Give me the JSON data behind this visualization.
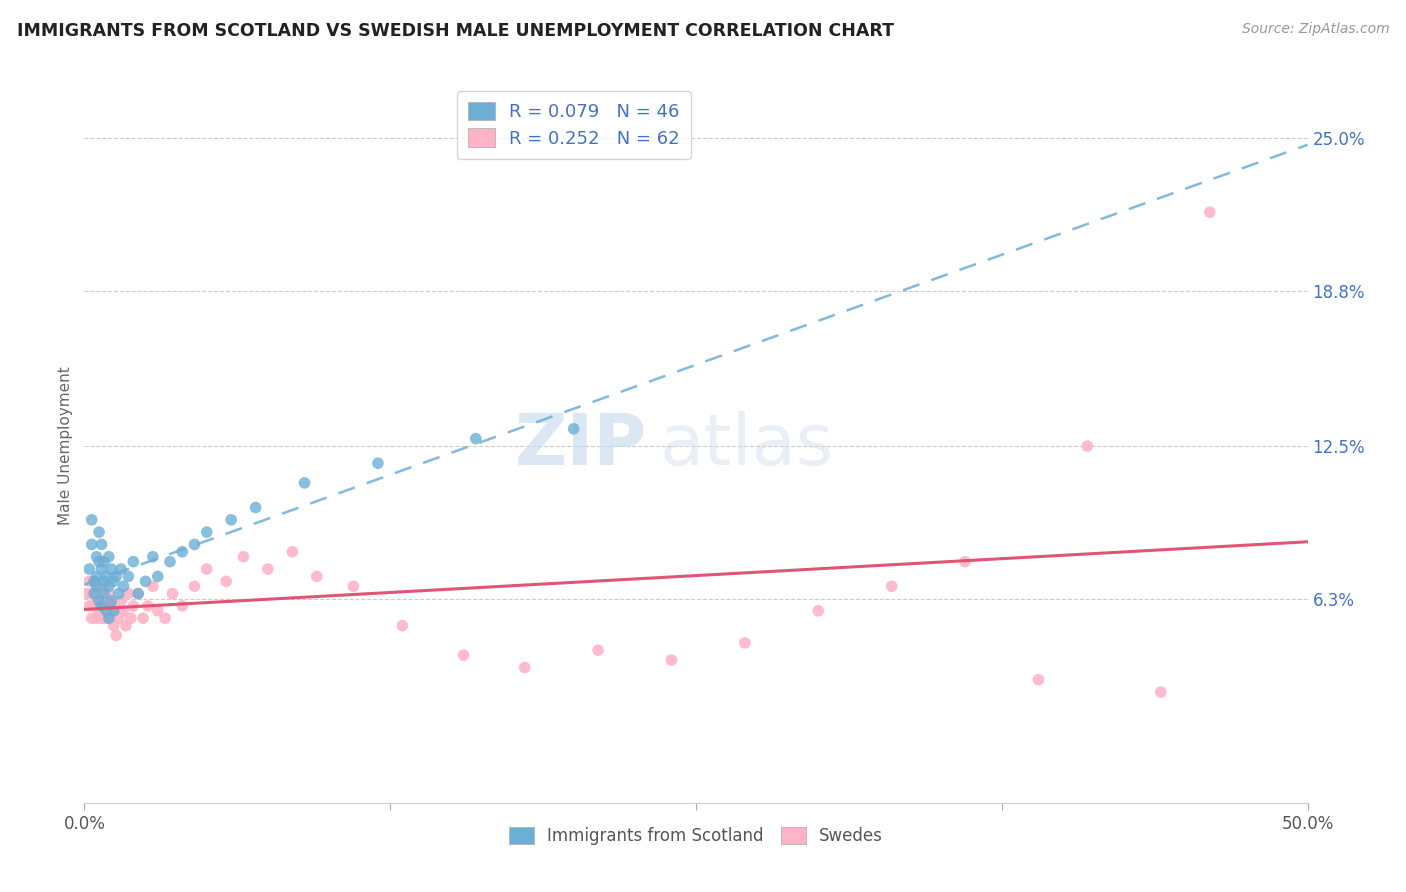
{
  "title": "IMMIGRANTS FROM SCOTLAND VS SWEDISH MALE UNEMPLOYMENT CORRELATION CHART",
  "source": "Source: ZipAtlas.com",
  "ylabel": "Male Unemployment",
  "legend_labels": [
    "Immigrants from Scotland",
    "Swedes"
  ],
  "r_scotland": 0.079,
  "n_scotland": 46,
  "r_swedes": 0.252,
  "n_swedes": 62,
  "xlim": [
    0.0,
    0.5
  ],
  "ylim": [
    -0.02,
    0.27
  ],
  "ytick_labels": [
    "6.3%",
    "12.5%",
    "18.8%",
    "25.0%"
  ],
  "ytick_values": [
    0.063,
    0.125,
    0.188,
    0.25
  ],
  "color_scotland": "#6baed6",
  "color_swedes": "#ffb3c6",
  "trendline_scotland_color": "#6baed6",
  "trendline_swedes_color": "#e05575",
  "watermark_zip": "ZIP",
  "watermark_atlas": "atlas",
  "scotland_x": [
    0.002,
    0.003,
    0.003,
    0.004,
    0.004,
    0.005,
    0.005,
    0.005,
    0.006,
    0.006,
    0.006,
    0.007,
    0.007,
    0.007,
    0.008,
    0.008,
    0.008,
    0.009,
    0.009,
    0.01,
    0.01,
    0.01,
    0.011,
    0.011,
    0.012,
    0.012,
    0.013,
    0.014,
    0.015,
    0.016,
    0.018,
    0.02,
    0.022,
    0.025,
    0.028,
    0.03,
    0.035,
    0.04,
    0.045,
    0.05,
    0.06,
    0.07,
    0.09,
    0.12,
    0.16,
    0.2
  ],
  "scotland_y": [
    0.075,
    0.085,
    0.095,
    0.07,
    0.065,
    0.08,
    0.072,
    0.068,
    0.09,
    0.078,
    0.062,
    0.085,
    0.075,
    0.06,
    0.07,
    0.078,
    0.065,
    0.072,
    0.058,
    0.08,
    0.068,
    0.055,
    0.075,
    0.062,
    0.07,
    0.058,
    0.072,
    0.065,
    0.075,
    0.068,
    0.072,
    0.078,
    0.065,
    0.07,
    0.08,
    0.072,
    0.078,
    0.082,
    0.085,
    0.09,
    0.095,
    0.1,
    0.11,
    0.118,
    0.128,
    0.132
  ],
  "swedes_x": [
    0.001,
    0.002,
    0.002,
    0.003,
    0.003,
    0.004,
    0.004,
    0.005,
    0.005,
    0.005,
    0.006,
    0.006,
    0.007,
    0.007,
    0.008,
    0.008,
    0.009,
    0.009,
    0.01,
    0.01,
    0.01,
    0.011,
    0.011,
    0.012,
    0.012,
    0.013,
    0.014,
    0.015,
    0.016,
    0.017,
    0.018,
    0.019,
    0.02,
    0.022,
    0.024,
    0.026,
    0.028,
    0.03,
    0.033,
    0.036,
    0.04,
    0.045,
    0.05,
    0.058,
    0.065,
    0.075,
    0.085,
    0.095,
    0.11,
    0.13,
    0.155,
    0.18,
    0.21,
    0.24,
    0.27,
    0.3,
    0.33,
    0.36,
    0.39,
    0.41,
    0.44,
    0.46
  ],
  "swedes_y": [
    0.065,
    0.06,
    0.07,
    0.055,
    0.065,
    0.06,
    0.07,
    0.055,
    0.062,
    0.068,
    0.058,
    0.065,
    0.06,
    0.055,
    0.068,
    0.058,
    0.062,
    0.055,
    0.065,
    0.058,
    0.062,
    0.055,
    0.06,
    0.052,
    0.058,
    0.048,
    0.055,
    0.062,
    0.058,
    0.052,
    0.065,
    0.055,
    0.06,
    0.065,
    0.055,
    0.06,
    0.068,
    0.058,
    0.055,
    0.065,
    0.06,
    0.068,
    0.075,
    0.07,
    0.08,
    0.075,
    0.082,
    0.072,
    0.068,
    0.052,
    0.04,
    0.035,
    0.042,
    0.038,
    0.045,
    0.058,
    0.068,
    0.078,
    0.03,
    0.125,
    0.025,
    0.22
  ]
}
